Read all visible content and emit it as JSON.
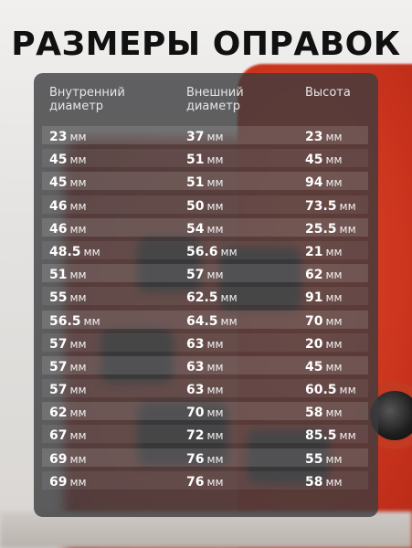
{
  "title": "РАЗМЕРЫ ОПРАВОК",
  "headers": {
    "inner_l1": "Внутренний",
    "inner_l2": "диаметр",
    "outer_l1": "Внешний",
    "outer_l2": "диаметр",
    "height": "Высота"
  },
  "unit": "мм",
  "rows": [
    {
      "inner": "23",
      "outer": "37",
      "height": "23"
    },
    {
      "inner": "45",
      "outer": "51",
      "height": "45"
    },
    {
      "inner": "45",
      "outer": "51",
      "height": "94"
    },
    {
      "inner": "46",
      "outer": "50",
      "height": "73.5"
    },
    {
      "inner": "46",
      "outer": "54",
      "height": "25.5"
    },
    {
      "inner": "48.5",
      "outer": "56.6",
      "height": "21"
    },
    {
      "inner": "51",
      "outer": "57",
      "height": "62"
    },
    {
      "inner": "55",
      "outer": "62.5",
      "height": "91"
    },
    {
      "inner": "56.5",
      "outer": "64.5",
      "height": "70"
    },
    {
      "inner": "57",
      "outer": "63",
      "height": "20"
    },
    {
      "inner": "57",
      "outer": "63",
      "height": "45"
    },
    {
      "inner": "57",
      "outer": "63",
      "height": "60.5"
    },
    {
      "inner": "62",
      "outer": "70",
      "height": "58"
    },
    {
      "inner": "67",
      "outer": "72",
      "height": "85.5"
    },
    {
      "inner": "69",
      "outer": "76",
      "height": "55"
    },
    {
      "inner": "69",
      "outer": "76",
      "height": "58"
    }
  ]
}
